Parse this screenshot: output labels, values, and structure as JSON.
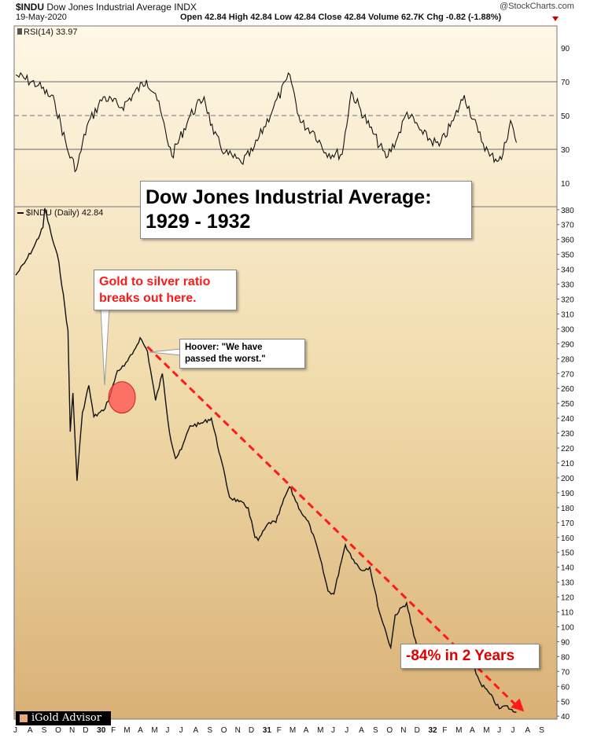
{
  "header": {
    "symbol": "$INDU",
    "name": "Dow Jones Industrial Average",
    "exchange": "INDX",
    "date": "19-May-2020",
    "ohlc_text": "Open 42.84 High 42.84 Low 42.84 Close 42.84 Volume 62.7K Chg -0.82 (-1.88%)",
    "copyright": "@StockCharts.com"
  },
  "colors": {
    "price_line": "#111111",
    "trend_line": "#ff1a1a",
    "highlight": "#ff4d4d",
    "background_top": "#fff8e6",
    "background_bottom": "#d9b176"
  },
  "annotations": {
    "title_line1": "Dow Jones Industrial Average:",
    "title_line2": "1929 - 1932",
    "gold_line1": "Gold to silver ratio",
    "gold_line2": "breaks out here.",
    "hoover_line1": "Hoover: \"We have",
    "hoover_line2": "passed the worst.\"",
    "decline": "-84% in 2 Years"
  },
  "watermark": "iGold Advisor",
  "chart_data": [
    {
      "type": "line",
      "legend": "RSI(14) 33.97",
      "ylim": [
        0,
        100
      ],
      "y_ticks": [
        10,
        30,
        50,
        70,
        90
      ],
      "reference_lines": [
        30,
        50,
        70
      ],
      "x": [
        "1929-07-01",
        "1929-08-20",
        "1929-09-25",
        "1929-10-25",
        "1929-11-12",
        "1929-12-05",
        "1930-01-10",
        "1930-02-20",
        "1930-04-15",
        "1930-05-05",
        "1930-06-10",
        "1930-07-20",
        "1930-08-20",
        "1930-09-10",
        "1930-10-05",
        "1930-11-10",
        "1930-12-05",
        "1931-01-20",
        "1931-02-25",
        "1931-03-20",
        "1931-04-20",
        "1931-05-15",
        "1931-06-20",
        "1931-07-10",
        "1931-08-20",
        "1931-09-25",
        "1931-10-20",
        "1931-11-10",
        "1931-12-15",
        "1932-01-20",
        "1932-02-20",
        "1932-03-15",
        "1932-04-15",
        "1932-05-10",
        "1932-06-05",
        "1932-06-25",
        "1932-07-08"
      ],
      "y": [
        74,
        68,
        58,
        28,
        18,
        44,
        61,
        55,
        71,
        63,
        26,
        50,
        61,
        39,
        28,
        22,
        29,
        55,
        74,
        46,
        40,
        28,
        27,
        64,
        43,
        25,
        37,
        52,
        39,
        32,
        47,
        62,
        40,
        26,
        24,
        47,
        33.97
      ]
    },
    {
      "type": "line",
      "legend": "$INDU (Daily) 42.84",
      "ylim": [
        38,
        382
      ],
      "y_ticks": [
        40,
        50,
        60,
        70,
        80,
        90,
        100,
        110,
        120,
        130,
        140,
        150,
        160,
        170,
        180,
        190,
        200,
        210,
        220,
        230,
        240,
        250,
        260,
        270,
        280,
        290,
        300,
        310,
        320,
        330,
        340,
        350,
        360,
        370,
        380
      ],
      "x_tick_labels": [
        "J",
        "A",
        "S",
        "O",
        "N",
        "D",
        "30",
        "F",
        "M",
        "A",
        "M",
        "J",
        "J",
        "A",
        "S",
        "O",
        "N",
        "D",
        "31",
        "F",
        "M",
        "A",
        "M",
        "J",
        "J",
        "A",
        "S",
        "O",
        "N",
        "D",
        "32",
        "F",
        "M",
        "A",
        "M",
        "J",
        "J",
        "A",
        "S"
      ],
      "x": [
        "1929-07-01",
        "1929-07-20",
        "1929-08-10",
        "1929-08-30",
        "1929-09-03",
        "1929-09-20",
        "1929-10-04",
        "1929-10-24",
        "1929-10-29",
        "1929-11-04",
        "1929-11-13",
        "1929-11-25",
        "1929-12-09",
        "1929-12-20",
        "1930-01-10",
        "1930-01-25",
        "1930-02-10",
        "1930-02-25",
        "1930-03-15",
        "1930-04-01",
        "1930-04-17",
        "1930-05-05",
        "1930-05-20",
        "1930-06-05",
        "1930-06-18",
        "1930-07-01",
        "1930-07-20",
        "1930-08-10",
        "1930-09-05",
        "1930-09-25",
        "1930-10-15",
        "1930-11-05",
        "1930-11-25",
        "1930-12-10",
        "1930-12-17",
        "1931-01-10",
        "1931-01-25",
        "1931-02-15",
        "1931-02-24",
        "1931-03-20",
        "1931-04-10",
        "1931-04-29",
        "1931-05-20",
        "1931-06-02",
        "1931-06-15",
        "1931-06-27",
        "1931-07-15",
        "1931-08-01",
        "1931-08-20",
        "1931-09-10",
        "1931-09-25",
        "1931-10-05",
        "1931-10-15",
        "1931-11-09",
        "1931-11-25",
        "1931-12-10",
        "1931-12-20",
        "1932-01-10",
        "1932-02-10",
        "1932-02-25",
        "1932-03-10",
        "1932-03-31",
        "1932-04-20",
        "1932-05-10",
        "1932-05-31",
        "1932-06-15",
        "1932-07-01",
        "1932-07-08"
      ],
      "y": [
        336,
        344,
        355,
        368,
        381,
        360,
        345,
        299,
        231,
        257,
        198,
        244,
        262,
        241,
        245,
        255,
        272,
        275,
        283,
        294,
        285,
        252,
        270,
        230,
        213,
        219,
        235,
        236,
        240,
        214,
        187,
        184,
        180,
        160,
        158,
        170,
        170,
        188,
        194,
        178,
        168,
        150,
        124,
        122,
        140,
        155,
        145,
        138,
        140,
        110,
        96,
        86,
        108,
        116,
        94,
        78,
        74,
        81,
        79,
        88,
        85,
        76,
        62,
        55,
        45,
        47,
        43,
        42.84
      ]
    }
  ],
  "trend_line": {
    "from": [
      "1930-04-17",
      288
    ],
    "to": [
      "1932-07-25",
      43
    ]
  },
  "highlight": {
    "center": [
      "1930-02-20",
      254
    ]
  }
}
